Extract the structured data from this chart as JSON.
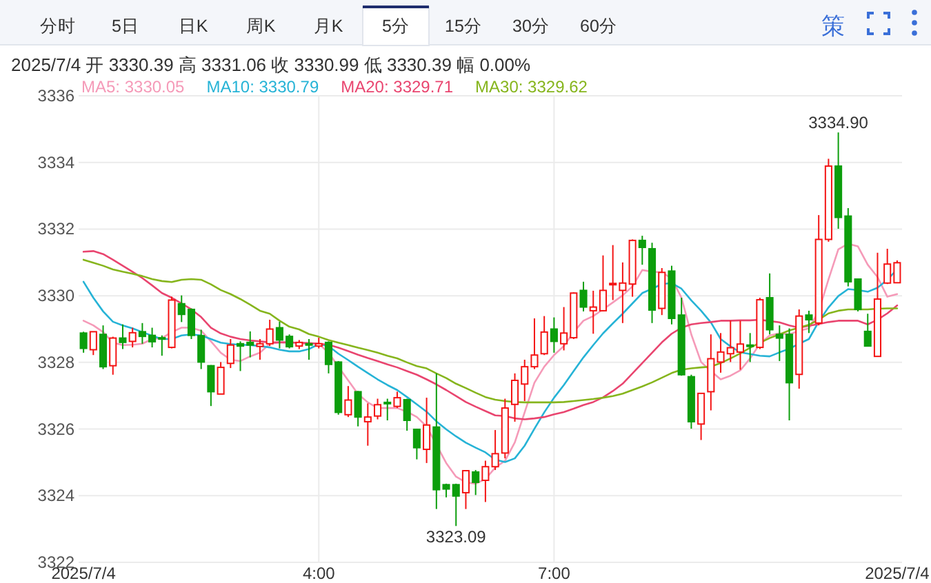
{
  "chart_data": {
    "type": "candlestick",
    "title": "2025/7/4 开 3330.39 高 3331.06 收 3330.99 低 3330.39 幅 0.00%",
    "categories": [
      "2025/7/4",
      null,
      null,
      null,
      null,
      null,
      null,
      null,
      null,
      null,
      null,
      null,
      null,
      null,
      null,
      null,
      null,
      null,
      null,
      null,
      null,
      null,
      null,
      null,
      "4:00",
      null,
      null,
      null,
      null,
      null,
      null,
      null,
      null,
      null,
      null,
      null,
      null,
      null,
      null,
      null,
      null,
      null,
      null,
      null,
      null,
      null,
      null,
      null,
      "7:00",
      null,
      null,
      null,
      null,
      null,
      null,
      null,
      null,
      null,
      null,
      null,
      null,
      null,
      null,
      null,
      null,
      null,
      null,
      null,
      null,
      null,
      null,
      null,
      null,
      null,
      null,
      null,
      null,
      null,
      null,
      null,
      null,
      null,
      null,
      "2025/7/4"
    ],
    "ohlc": [
      [
        3328.88,
        3328.92,
        3328.29,
        3328.42
      ],
      [
        3328.38,
        3328.92,
        3328.22,
        3328.92
      ],
      [
        3328.84,
        3329.11,
        3327.8,
        3327.87
      ],
      [
        3327.9,
        3328.77,
        3327.63,
        3328.73
      ],
      [
        3328.73,
        3329.14,
        3328.4,
        3328.6
      ],
      [
        3328.63,
        3329.04,
        3328.45,
        3328.89
      ],
      [
        3328.92,
        3329.18,
        3328.56,
        3328.78
      ],
      [
        3328.81,
        3329.04,
        3328.45,
        3328.62
      ],
      [
        3328.74,
        3328.81,
        3328.2,
        3328.7
      ],
      [
        3328.45,
        3329.97,
        3328.42,
        3329.87
      ],
      [
        3329.76,
        3330.01,
        3329.21,
        3329.44
      ],
      [
        3329.59,
        3329.62,
        3328.7,
        3328.81
      ],
      [
        3328.8,
        3328.98,
        3327.8,
        3328.01
      ],
      [
        3327.9,
        3327.92,
        3326.69,
        3327.12
      ],
      [
        3327.05,
        3328.01,
        3327.05,
        3327.85
      ],
      [
        3327.97,
        3328.7,
        3327.83,
        3328.52
      ],
      [
        3328.56,
        3328.63,
        3327.74,
        3328.49
      ],
      [
        3328.6,
        3328.93,
        3328.15,
        3328.52
      ],
      [
        3328.48,
        3328.7,
        3328.08,
        3328.56
      ],
      [
        3328.56,
        3329.28,
        3328.49,
        3329.0
      ],
      [
        3329.04,
        3329.22,
        3328.42,
        3328.67
      ],
      [
        3328.78,
        3328.84,
        3328.42,
        3328.47
      ],
      [
        3328.49,
        3328.67,
        3328.4,
        3328.6
      ],
      [
        3328.56,
        3328.7,
        3328.08,
        3328.52
      ],
      [
        3328.49,
        3328.74,
        3328.42,
        3328.56
      ],
      [
        3328.6,
        3328.63,
        3327.67,
        3327.94
      ],
      [
        3328.01,
        3328.04,
        3326.43,
        3326.5
      ],
      [
        3326.43,
        3327.29,
        3326.36,
        3326.87
      ],
      [
        3327.12,
        3327.14,
        3326.08,
        3326.36
      ],
      [
        3326.22,
        3326.77,
        3325.5,
        3326.36
      ],
      [
        3326.39,
        3326.91,
        3326.29,
        3326.73
      ],
      [
        3326.8,
        3326.91,
        3326.26,
        3326.77
      ],
      [
        3326.68,
        3327.12,
        3326.63,
        3326.94
      ],
      [
        3326.88,
        3326.91,
        3325.95,
        3326.26
      ],
      [
        3325.99,
        3326.01,
        3325.09,
        3325.44
      ],
      [
        3325.39,
        3326.94,
        3324.98,
        3326.12
      ],
      [
        3326.06,
        3327.67,
        3323.6,
        3324.18
      ],
      [
        3324.33,
        3324.36,
        3323.95,
        3324.2
      ],
      [
        3324.33,
        3324.36,
        3323.09,
        3323.99
      ],
      [
        3324.09,
        3324.77,
        3323.6,
        3324.75
      ],
      [
        3324.71,
        3324.77,
        3324.02,
        3324.4
      ],
      [
        3324.46,
        3325.05,
        3323.81,
        3324.87
      ],
      [
        3324.87,
        3325.97,
        3324.77,
        3325.26
      ],
      [
        3325.28,
        3326.91,
        3325.12,
        3326.63
      ],
      [
        3326.74,
        3327.67,
        3326.22,
        3327.46
      ],
      [
        3327.35,
        3328.08,
        3326.84,
        3327.87
      ],
      [
        3327.87,
        3329.32,
        3327.8,
        3328.22
      ],
      [
        3328.26,
        3329.39,
        3328.22,
        3328.91
      ],
      [
        3329.0,
        3329.35,
        3328.29,
        3328.63
      ],
      [
        3328.56,
        3329.66,
        3328.36,
        3328.88
      ],
      [
        3328.74,
        3330.1,
        3328.7,
        3330.08
      ],
      [
        3330.16,
        3330.42,
        3329.53,
        3329.66
      ],
      [
        3329.55,
        3330.15,
        3328.86,
        3329.66
      ],
      [
        3329.55,
        3331.21,
        3329.53,
        3330.16
      ],
      [
        3330.33,
        3331.52,
        3329.87,
        3330.37
      ],
      [
        3330.16,
        3331.0,
        3329.18,
        3330.38
      ],
      [
        3330.35,
        3331.69,
        3329.97,
        3331.66
      ],
      [
        3331.66,
        3331.8,
        3330.93,
        3331.45
      ],
      [
        3331.41,
        3331.59,
        3329.18,
        3329.57
      ],
      [
        3329.62,
        3330.83,
        3329.42,
        3330.7
      ],
      [
        3330.74,
        3330.9,
        3329.14,
        3329.32
      ],
      [
        3329.42,
        3329.94,
        3327.6,
        3327.63
      ],
      [
        3327.57,
        3327.63,
        3326.01,
        3326.22
      ],
      [
        3326.15,
        3327.07,
        3325.67,
        3327.07
      ],
      [
        3327.12,
        3328.84,
        3326.56,
        3328.11
      ],
      [
        3328.01,
        3328.88,
        3327.69,
        3328.31
      ],
      [
        3328.26,
        3329.25,
        3328.01,
        3328.44
      ],
      [
        3328.31,
        3329.25,
        3327.78,
        3328.55
      ],
      [
        3328.52,
        3328.88,
        3328.01,
        3328.49
      ],
      [
        3328.45,
        3329.94,
        3328.4,
        3329.88
      ],
      [
        3329.94,
        3330.67,
        3328.84,
        3328.98
      ],
      [
        3328.84,
        3329.11,
        3328.04,
        3328.73
      ],
      [
        3328.84,
        3329.02,
        3326.26,
        3327.39
      ],
      [
        3327.64,
        3329.59,
        3327.21,
        3329.39
      ],
      [
        3329.42,
        3329.55,
        3328.88,
        3329.28
      ],
      [
        3329.18,
        3332.42,
        3329.11,
        3331.69
      ],
      [
        3331.69,
        3334.11,
        3331.62,
        3333.89
      ],
      [
        3333.89,
        3334.9,
        3332.01,
        3332.35
      ],
      [
        3332.39,
        3332.63,
        3330.28,
        3330.42
      ],
      [
        3330.5,
        3330.5,
        3329.53,
        3329.59
      ],
      [
        3328.93,
        3329.46,
        3328.49,
        3328.49
      ],
      [
        3328.18,
        3331.29,
        3328.18,
        3329.9
      ],
      [
        3330.38,
        3331.41,
        3330.35,
        3330.95
      ],
      [
        3330.39,
        3331.06,
        3330.39,
        3330.99
      ]
    ],
    "colors": [
      "#0c9e0c",
      "#f41414",
      "#0c9e0c",
      "#f41414",
      "#0c9e0c",
      "#f41414",
      "#0c9e0c",
      "#0c9e0c",
      "#0c9e0c",
      "#f41414",
      "#0c9e0c",
      "#0c9e0c",
      "#0c9e0c",
      "#0c9e0c",
      "#f41414",
      "#f41414",
      "#0c9e0c",
      "#0c9e0c",
      "#f41414",
      "#f41414",
      "#0c9e0c",
      "#0c9e0c",
      "#f41414",
      "#0c9e0c",
      "#f41414",
      "#0c9e0c",
      "#0c9e0c",
      "#f41414",
      "#0c9e0c",
      "#f41414",
      "#f41414",
      "#0c9e0c",
      "#f41414",
      "#0c9e0c",
      "#0c9e0c",
      "#f41414",
      "#0c9e0c",
      "#0c9e0c",
      "#0c9e0c",
      "#f41414",
      "#0c9e0c",
      "#f41414",
      "#f41414",
      "#f41414",
      "#f41414",
      "#f41414",
      "#f41414",
      "#f41414",
      "#0c9e0c",
      "#f41414",
      "#f41414",
      "#0c9e0c",
      "#f41414",
      "#f41414",
      "#f41414",
      "#f41414",
      "#f41414",
      "#0c9e0c",
      "#0c9e0c",
      "#f41414",
      "#0c9e0c",
      "#0c9e0c",
      "#0c9e0c",
      "#f41414",
      "#f41414",
      "#f41414",
      "#f41414",
      "#f41414",
      "#0c9e0c",
      "#f41414",
      "#0c9e0c",
      "#0c9e0c",
      "#0c9e0c",
      "#f41414",
      "#0c9e0c",
      "#f41414",
      "#f41414",
      "#0c9e0c",
      "#0c9e0c",
      "#0c9e0c",
      "#0c9e0c",
      "#f41414",
      "#f41414",
      "#f41414"
    ],
    "series": [
      {
        "name": "MA5: 3330.05",
        "type": "line",
        "color": "#f59ab8",
        "values": [
          3329.25,
          3329.11,
          3328.91,
          3328.59,
          3328.52,
          3328.53,
          3328.56,
          3328.7,
          3328.73,
          3328.91,
          3329.04,
          3329.04,
          3328.95,
          3328.63,
          3328.29,
          3328.08,
          3328.04,
          3328.18,
          3328.29,
          3328.56,
          3328.6,
          3328.63,
          3328.56,
          3328.56,
          3328.56,
          3328.29,
          3327.87,
          3327.46,
          3327.05,
          3326.8,
          3326.63,
          3326.63,
          3326.63,
          3326.52,
          3326.36,
          3326.08,
          3325.53,
          3324.98,
          3324.57,
          3324.4,
          3324.36,
          3324.5,
          3324.84,
          3325.05,
          3325.6,
          3326.5,
          3327.39,
          3327.87,
          3328.22,
          3328.49,
          3328.91,
          3329.25,
          3329.39,
          3329.59,
          3329.8,
          3330.01,
          3330.28,
          3330.77,
          3330.72,
          3330.7,
          3330.52,
          3329.94,
          3328.84,
          3328.01,
          3327.74,
          3327.49,
          3327.6,
          3327.76,
          3328.12,
          3328.56,
          3328.81,
          3328.87,
          3328.84,
          3328.95,
          3329.02,
          3329.53,
          3330.49,
          3331.39,
          3331.56,
          3331.48,
          3330.93,
          3330.56,
          3329.97,
          3330.05
        ]
      },
      {
        "name": "MA10: 3330.79",
        "type": "line",
        "color": "#26b3d6",
        "values": [
          3330.42,
          3329.94,
          3329.53,
          3329.22,
          3329.11,
          3329.02,
          3328.91,
          3328.8,
          3328.7,
          3328.7,
          3328.81,
          3328.84,
          3328.81,
          3328.7,
          3328.59,
          3328.55,
          3328.53,
          3328.52,
          3328.49,
          3328.45,
          3328.38,
          3328.33,
          3328.33,
          3328.4,
          3328.55,
          3328.49,
          3328.26,
          3328.07,
          3327.87,
          3327.68,
          3327.49,
          3327.32,
          3327.17,
          3326.96,
          3326.74,
          3326.52,
          3326.23,
          3325.99,
          3325.78,
          3325.59,
          3325.44,
          3325.3,
          3325.08,
          3325.01,
          3325.12,
          3325.5,
          3326.01,
          3326.5,
          3326.94,
          3327.32,
          3327.74,
          3328.15,
          3328.52,
          3328.87,
          3329.17,
          3329.46,
          3329.77,
          3330.08,
          3330.21,
          3330.35,
          3330.38,
          3330.21,
          3329.86,
          3329.55,
          3329.2,
          3328.7,
          3328.48,
          3328.3,
          3328.25,
          3328.2,
          3328.18,
          3328.3,
          3328.41,
          3328.56,
          3328.7,
          3329.22,
          3329.65,
          3329.99,
          3330.2,
          3330.17,
          3330.12,
          3330.24,
          3330.48,
          3330.79
        ]
      },
      {
        "name": "MA20: 3329.71",
        "type": "line",
        "color": "#e9456f",
        "values": [
          3331.32,
          3331.34,
          3331.25,
          3331.08,
          3330.9,
          3330.72,
          3330.53,
          3330.31,
          3330.08,
          3329.94,
          3329.77,
          3329.59,
          3329.36,
          3329.04,
          3328.87,
          3328.77,
          3328.7,
          3328.66,
          3328.63,
          3328.6,
          3328.6,
          3328.59,
          3328.59,
          3328.58,
          3328.56,
          3328.53,
          3328.44,
          3328.34,
          3328.23,
          3328.13,
          3328.04,
          3327.94,
          3327.85,
          3327.74,
          3327.63,
          3327.49,
          3327.34,
          3327.17,
          3326.99,
          3326.81,
          3326.67,
          3326.54,
          3326.41,
          3326.39,
          3326.32,
          3326.29,
          3326.32,
          3326.36,
          3326.44,
          3326.51,
          3326.61,
          3326.72,
          3326.81,
          3326.95,
          3327.14,
          3327.36,
          3327.67,
          3327.98,
          3328.29,
          3328.6,
          3328.86,
          3329.04,
          3329.14,
          3329.18,
          3329.21,
          3329.25,
          3329.25,
          3329.26,
          3329.26,
          3329.28,
          3329.24,
          3329.2,
          3329.11,
          3329.04,
          3329.1,
          3329.15,
          3329.21,
          3329.25,
          3329.25,
          3329.25,
          3329.14,
          3329.28,
          3329.47,
          3329.71
        ]
      },
      {
        "name": "MA30: 3329.62",
        "type": "line",
        "color": "#86b51d",
        "values": [
          3331.08,
          3330.99,
          3330.9,
          3330.79,
          3330.72,
          3330.66,
          3330.59,
          3330.5,
          3330.44,
          3330.41,
          3330.48,
          3330.5,
          3330.48,
          3330.34,
          3330.17,
          3330.05,
          3329.9,
          3329.73,
          3329.55,
          3329.46,
          3329.25,
          3329.07,
          3328.99,
          3328.85,
          3328.77,
          3328.67,
          3328.59,
          3328.52,
          3328.44,
          3328.37,
          3328.29,
          3328.2,
          3328.12,
          3328.0,
          3327.89,
          3327.82,
          3327.67,
          3327.53,
          3327.36,
          3327.23,
          3327.09,
          3326.96,
          3326.88,
          3326.84,
          3326.81,
          3326.8,
          3326.8,
          3326.8,
          3326.8,
          3326.81,
          3326.84,
          3326.87,
          3326.9,
          3326.94,
          3326.99,
          3327.06,
          3327.17,
          3327.28,
          3327.4,
          3327.54,
          3327.68,
          3327.78,
          3327.82,
          3327.85,
          3327.87,
          3327.98,
          3328.12,
          3328.27,
          3328.44,
          3328.59,
          3328.73,
          3328.84,
          3328.96,
          3329.04,
          3329.13,
          3329.28,
          3329.47,
          3329.55,
          3329.59,
          3329.59,
          3329.59,
          3329.61,
          3329.62,
          3329.62
        ]
      }
    ],
    "ylim": [
      3322,
      3336
    ],
    "yticks": [
      3322,
      3324,
      3326,
      3328,
      3330,
      3332,
      3334,
      3336
    ],
    "grid": true,
    "legend": "top left",
    "annotations": [
      "分时",
      "5日",
      "日K",
      "周K",
      "月K",
      "5分",
      "15分",
      "30分",
      "60分",
      "策",
      {
        "text": "3334.90",
        "y": 3334.9
      },
      {
        "text": "3323.09",
        "y": 3323.09
      }
    ]
  }
}
